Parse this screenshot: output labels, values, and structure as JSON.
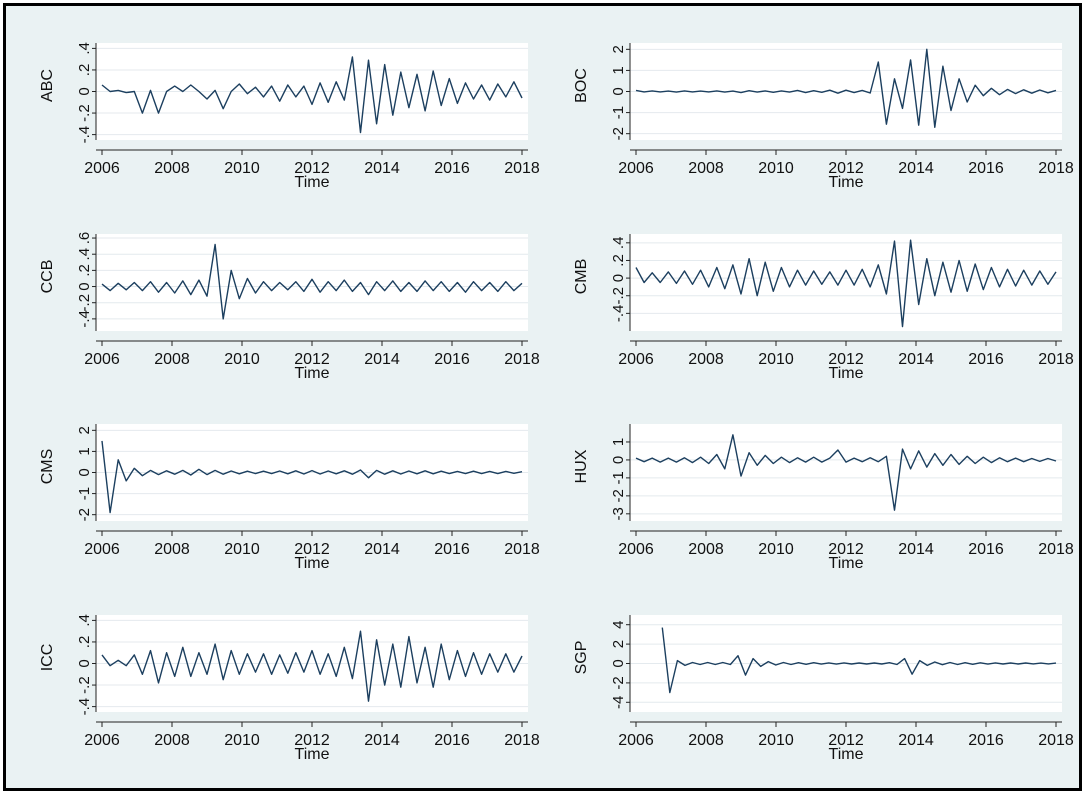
{
  "figure": {
    "background": "#eaf2f3",
    "plot_background": "#ffffff",
    "line_color": "#1c3f5f",
    "grid_color": "#e4eaee"
  },
  "chart_data": [
    {
      "type": "line",
      "series": [
        {
          "name": "ABC",
          "values": [
            0.06,
            0.0,
            0.01,
            -0.01,
            0.0,
            -0.2,
            0.01,
            -0.2,
            0.0,
            0.05,
            0.0,
            0.06,
            0.0,
            -0.07,
            0.01,
            -0.16,
            0.0,
            0.07,
            -0.02,
            0.04,
            -0.05,
            0.05,
            -0.09,
            0.06,
            -0.05,
            0.05,
            -0.12,
            0.08,
            -0.1,
            0.09,
            -0.08,
            0.32,
            -0.38,
            0.29,
            -0.3,
            0.25,
            -0.22,
            0.18,
            -0.15,
            0.16,
            -0.18,
            0.19,
            -0.13,
            0.12,
            -0.11,
            0.08,
            -0.07,
            0.06,
            -0.08,
            0.07,
            -0.05,
            0.09,
            -0.06
          ]
        }
      ],
      "x_range": [
        2006,
        2018
      ],
      "y_label": "ABC",
      "y_ticks": [
        "-.4",
        "-.2",
        "0",
        ".2",
        ".4"
      ],
      "y_range": [
        -0.45,
        0.45
      ],
      "x_ticks": [
        "2006",
        "2008",
        "2010",
        "2012",
        "2014",
        "2016",
        "2018"
      ],
      "xlabel": "Time"
    },
    {
      "type": "line",
      "series": [
        {
          "name": "BOC",
          "values": [
            0.05,
            -0.02,
            0.03,
            -0.02,
            0.02,
            -0.03,
            0.03,
            -0.02,
            0.02,
            -0.02,
            0.03,
            -0.03,
            0.02,
            -0.05,
            0.04,
            -0.03,
            0.03,
            -0.04,
            0.03,
            -0.03,
            0.05,
            -0.05,
            0.04,
            -0.04,
            0.06,
            -0.08,
            0.06,
            -0.05,
            0.05,
            -0.07,
            1.4,
            -1.55,
            0.6,
            -0.8,
            1.5,
            -1.6,
            2.0,
            -1.7,
            1.2,
            -0.9,
            0.6,
            -0.5,
            0.3,
            -0.2,
            0.15,
            -0.15,
            0.1,
            -0.1,
            0.08,
            -0.08,
            0.07,
            -0.06,
            0.05
          ]
        }
      ],
      "x_range": [
        2006,
        2018
      ],
      "y_label": "BOC",
      "y_ticks": [
        "-2",
        "-1",
        "0",
        "1",
        "2"
      ],
      "y_range": [
        -2.3,
        2.3
      ],
      "x_ticks": [
        "2006",
        "2008",
        "2010",
        "2012",
        "2014",
        "2016",
        "2018"
      ],
      "xlabel": "Time"
    },
    {
      "type": "line",
      "series": [
        {
          "name": "CCB",
          "values": [
            0.03,
            -0.05,
            0.04,
            -0.04,
            0.05,
            -0.05,
            0.06,
            -0.07,
            0.05,
            -0.08,
            0.07,
            -0.1,
            0.08,
            -0.12,
            0.52,
            -0.4,
            0.2,
            -0.15,
            0.1,
            -0.08,
            0.06,
            -0.05,
            0.05,
            -0.04,
            0.06,
            -0.06,
            0.09,
            -0.07,
            0.06,
            -0.05,
            0.08,
            -0.06,
            0.05,
            -0.1,
            0.06,
            -0.05,
            0.07,
            -0.06,
            0.05,
            -0.06,
            0.07,
            -0.05,
            0.06,
            -0.06,
            0.05,
            -0.07,
            0.06,
            -0.05,
            0.05,
            -0.06,
            0.06,
            -0.05,
            0.04
          ]
        }
      ],
      "x_range": [
        2006,
        2018
      ],
      "y_label": "CCB",
      "y_ticks": [
        "-.4",
        "-.2",
        "0",
        ".2",
        ".4",
        ".6"
      ],
      "y_range": [
        -0.55,
        0.65
      ],
      "x_ticks": [
        "2006",
        "2008",
        "2010",
        "2012",
        "2014",
        "2016",
        "2018"
      ],
      "xlabel": "Time"
    },
    {
      "type": "line",
      "series": [
        {
          "name": "CMB",
          "values": [
            0.12,
            -0.05,
            0.06,
            -0.05,
            0.07,
            -0.06,
            0.08,
            -0.07,
            0.09,
            -0.1,
            0.12,
            -0.12,
            0.15,
            -0.18,
            0.22,
            -0.2,
            0.18,
            -0.15,
            0.12,
            -0.1,
            0.09,
            -0.08,
            0.08,
            -0.07,
            0.07,
            -0.08,
            0.09,
            -0.08,
            0.1,
            -0.1,
            0.15,
            -0.18,
            0.42,
            -0.55,
            0.43,
            -0.3,
            0.22,
            -0.2,
            0.18,
            -0.16,
            0.2,
            -0.15,
            0.16,
            -0.13,
            0.12,
            -0.1,
            0.1,
            -0.09,
            0.09,
            -0.08,
            0.08,
            -0.07,
            0.07
          ]
        }
      ],
      "x_range": [
        2006,
        2018
      ],
      "y_label": "CMB",
      "y_ticks": [
        "-.4",
        "-.2",
        "0",
        ".2",
        ".4"
      ],
      "y_range": [
        -0.6,
        0.5
      ],
      "x_ticks": [
        "2006",
        "2008",
        "2010",
        "2012",
        "2014",
        "2016",
        "2018"
      ],
      "xlabel": "Time"
    },
    {
      "type": "line",
      "series": [
        {
          "name": "CMS",
          "values": [
            1.5,
            -1.9,
            0.6,
            -0.4,
            0.2,
            -0.15,
            0.1,
            -0.1,
            0.08,
            -0.08,
            0.1,
            -0.12,
            0.15,
            -0.1,
            0.1,
            -0.08,
            0.07,
            -0.06,
            0.06,
            -0.05,
            0.06,
            -0.05,
            0.07,
            -0.06,
            0.08,
            -0.07,
            0.09,
            -0.07,
            0.07,
            -0.06,
            0.08,
            -0.08,
            0.12,
            -0.25,
            0.1,
            -0.08,
            0.08,
            -0.07,
            0.07,
            -0.06,
            0.08,
            -0.06,
            0.06,
            -0.05,
            0.05,
            -0.05,
            0.06,
            -0.05,
            0.05,
            -0.05,
            0.05,
            -0.04,
            0.04
          ]
        }
      ],
      "x_range": [
        2006,
        2018
      ],
      "y_label": "CMS",
      "y_ticks": [
        "-2",
        "-1",
        "0",
        "1",
        "2"
      ],
      "y_range": [
        -2.3,
        2.3
      ],
      "x_ticks": [
        "2006",
        "2008",
        "2010",
        "2012",
        "2014",
        "2016",
        "2018"
      ],
      "xlabel": "Time"
    },
    {
      "type": "line",
      "series": [
        {
          "name": "HUX",
          "values": [
            0.1,
            -0.1,
            0.1,
            -0.12,
            0.1,
            -0.12,
            0.12,
            -0.15,
            0.15,
            -0.2,
            0.3,
            -0.5,
            1.4,
            -0.9,
            0.4,
            -0.3,
            0.25,
            -0.2,
            0.15,
            -0.15,
            0.12,
            -0.12,
            0.15,
            -0.12,
            0.1,
            0.55,
            -0.12,
            0.1,
            -0.1,
            0.12,
            -0.1,
            0.2,
            -2.8,
            0.6,
            -0.5,
            0.5,
            -0.4,
            0.35,
            -0.3,
            0.3,
            -0.25,
            0.2,
            -0.2,
            0.15,
            -0.15,
            0.12,
            -0.1,
            0.1,
            -0.1,
            0.08,
            -0.08,
            0.08,
            -0.06
          ]
        }
      ],
      "x_range": [
        2006,
        2018
      ],
      "y_label": "HUX",
      "y_ticks": [
        "-3",
        "-2",
        "-1",
        "0",
        "1"
      ],
      "y_range": [
        -3.4,
        2.0
      ],
      "x_ticks": [
        "2006",
        "2008",
        "2010",
        "2012",
        "2014",
        "2016",
        "2018"
      ],
      "xlabel": "Time"
    },
    {
      "type": "line",
      "series": [
        {
          "name": "ICC",
          "values": [
            0.08,
            -0.02,
            0.03,
            -0.02,
            0.08,
            -0.1,
            0.12,
            -0.18,
            0.1,
            -0.12,
            0.15,
            -0.12,
            0.1,
            -0.1,
            0.18,
            -0.15,
            0.12,
            -0.1,
            0.09,
            -0.08,
            0.09,
            -0.1,
            0.08,
            -0.09,
            0.1,
            -0.08,
            0.12,
            -0.1,
            0.09,
            -0.12,
            0.15,
            -0.14,
            0.3,
            -0.35,
            0.22,
            -0.2,
            0.18,
            -0.22,
            0.25,
            -0.18,
            0.15,
            -0.22,
            0.18,
            -0.15,
            0.12,
            -0.12,
            0.1,
            -0.1,
            0.09,
            -0.08,
            0.09,
            -0.08,
            0.07
          ]
        }
      ],
      "x_range": [
        2006,
        2018
      ],
      "y_label": "ICC",
      "y_ticks": [
        "-.4",
        "-.2",
        "0",
        ".2",
        ".4"
      ],
      "y_range": [
        -0.45,
        0.45
      ],
      "x_ticks": [
        "2006",
        "2008",
        "2010",
        "2012",
        "2014",
        "2016",
        "2018"
      ],
      "xlabel": "Time"
    },
    {
      "type": "line",
      "series": [
        {
          "name": "SGP",
          "values": [
            3.7,
            -3.0,
            0.3,
            -0.2,
            0.1,
            -0.1,
            0.1,
            -0.1,
            0.1,
            -0.1,
            0.8,
            -1.2,
            0.5,
            -0.3,
            0.2,
            -0.15,
            0.1,
            -0.1,
            0.08,
            -0.08,
            0.08,
            -0.06,
            0.06,
            -0.06,
            0.06,
            -0.05,
            0.05,
            -0.05,
            0.05,
            -0.05,
            0.08,
            -0.1,
            0.5,
            -1.1,
            0.3,
            -0.2,
            0.15,
            -0.12,
            0.1,
            -0.1,
            0.08,
            -0.08,
            0.07,
            -0.06,
            0.06,
            -0.05,
            0.05,
            -0.05,
            0.05,
            -0.04,
            0.04,
            -0.04,
            0.04
          ]
        }
      ],
      "x_range": [
        2006.75,
        2018
      ],
      "y_label": "SGP",
      "y_ticks": [
        "-4",
        "-2",
        "0",
        "2",
        "4"
      ],
      "y_range": [
        -5.0,
        5.0
      ],
      "x_ticks": [
        "2006",
        "2008",
        "2010",
        "2012",
        "2014",
        "2016",
        "2018"
      ],
      "xlabel": "Time"
    }
  ]
}
